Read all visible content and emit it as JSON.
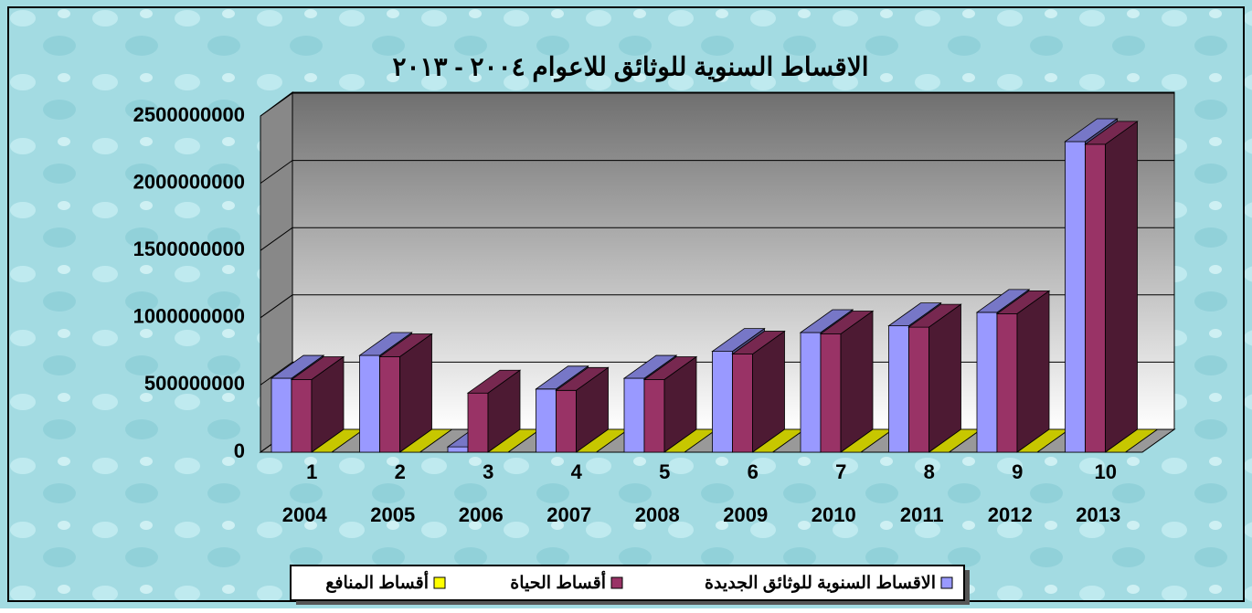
{
  "chart_data": {
    "type": "bar3d",
    "title": "الاقساط السنوية للوثائق للاعوام ٢٠٠٤ - ٢٠١٣",
    "categories": [
      [
        "1",
        "2004"
      ],
      [
        "2",
        "2005"
      ],
      [
        "3",
        "2006"
      ],
      [
        "4",
        "2007"
      ],
      [
        "5",
        "2008"
      ],
      [
        "6",
        "2009"
      ],
      [
        "7",
        "2010"
      ],
      [
        "8",
        "2011"
      ],
      [
        "9",
        "2012"
      ],
      [
        "10",
        "2013"
      ]
    ],
    "series": [
      {
        "name": "الاقساط السنوية للوثائق الجديدة",
        "color": "#9999ff",
        "values": [
          550000000,
          720000000,
          40000000,
          470000000,
          550000000,
          750000000,
          890000000,
          940000000,
          1040000000,
          2310000000
        ]
      },
      {
        "name": "أقساط الحياة",
        "color": "#993366",
        "values": [
          540000000,
          710000000,
          440000000,
          460000000,
          540000000,
          730000000,
          880000000,
          930000000,
          1030000000,
          2290000000
        ]
      },
      {
        "name": "أقساط المنافع",
        "color": "#ffff00",
        "values": [
          0,
          0,
          0,
          0,
          0,
          0,
          0,
          0,
          0,
          0
        ]
      }
    ],
    "ylim": [
      0,
      2500000000
    ],
    "yticks": [
      0,
      500000000,
      1000000000,
      1500000000,
      2000000000,
      2500000000
    ],
    "grid": true
  }
}
